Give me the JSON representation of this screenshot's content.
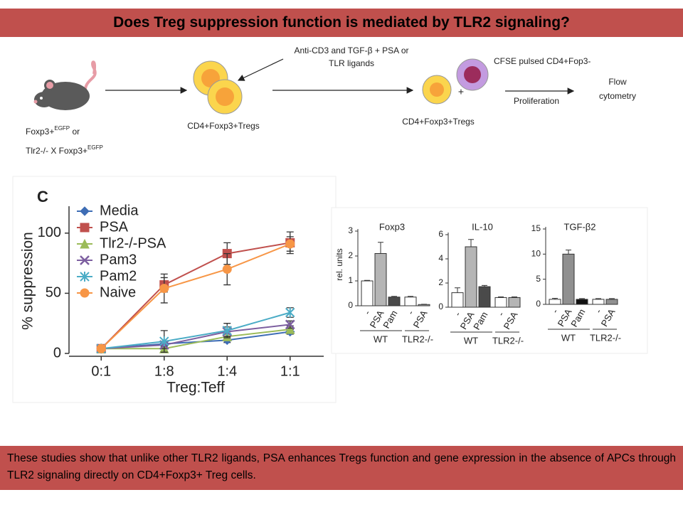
{
  "title": "Does Treg suppression function is mediated by TLR2 signaling?",
  "diagram": {
    "stimulus": [
      "Anti-CD3 and TGF-β + PSA or",
      "TLR ligands"
    ],
    "responder": "CFSE pulsed CD4+Fop3-",
    "readout": [
      "Flow",
      "cytometry"
    ],
    "proliferation": "Proliferation",
    "plus": "+",
    "cells": [
      "CD4+Foxp3+Tregs",
      "CD4+Foxp3+Tregs"
    ],
    "mouse": [
      [
        "Foxp3+",
        "EGFP",
        " or"
      ],
      [
        "Tlr2-/- X Foxp3+",
        "EGFP"
      ]
    ]
  },
  "chart_data": [
    {
      "type": "line",
      "panel": "C",
      "xlabel": "Treg:Teff",
      "ylabel": "% suppression",
      "categories": [
        "0:1",
        "1:8",
        "1:4",
        "1:1"
      ],
      "ylim": [
        0,
        120
      ],
      "yticks": [
        0,
        50,
        100
      ],
      "series": [
        {
          "name": "Media",
          "color": "#3e6db5",
          "marker": "diamond",
          "values": [
            4,
            8,
            11,
            18
          ],
          "errors": [
            1,
            2,
            2,
            2
          ]
        },
        {
          "name": "PSA",
          "color": "#c0504d",
          "marker": "square",
          "values": [
            4,
            57,
            83,
            92
          ],
          "errors": [
            1,
            6,
            9,
            9
          ]
        },
        {
          "name": "Tlr2-/-PSA",
          "color": "#9bbb59",
          "marker": "triangle",
          "values": [
            4,
            4,
            14,
            20
          ],
          "errors": [
            1,
            2,
            3,
            3
          ]
        },
        {
          "name": "Pam3",
          "color": "#7d5fa0",
          "marker": "x",
          "values": [
            4,
            7,
            18,
            24
          ],
          "errors": [
            1,
            3,
            4,
            3
          ]
        },
        {
          "name": "Pam2",
          "color": "#4bacc6",
          "marker": "star",
          "values": [
            4,
            10,
            19,
            34
          ],
          "errors": [
            1,
            9,
            6,
            4
          ]
        },
        {
          "name": "Naive",
          "color": "#f79646",
          "marker": "circle",
          "values": [
            4,
            54,
            70,
            91
          ],
          "errors": [
            1,
            12,
            13,
            6
          ]
        }
      ]
    },
    {
      "type": "bar",
      "title": "Foxp3",
      "ylabel": "rel. units",
      "categories": [
        "-",
        "PSA",
        "Pam",
        "-",
        "PSA"
      ],
      "groups": [
        "WT",
        "TLR2-/-"
      ],
      "values": [
        1,
        2.1,
        0.35,
        0.35,
        0.05
      ],
      "errors": [
        0.02,
        0.45,
        0.03,
        0.03,
        0.01
      ],
      "colors": [
        "#ffffff",
        "#b5b5b5",
        "#4a4a4a",
        "#ffffff",
        "#b5b5b5"
      ],
      "ylim": [
        0,
        3
      ],
      "yticks": [
        0,
        1,
        2,
        3
      ]
    },
    {
      "type": "bar",
      "title": "IL-10",
      "categories": [
        "-",
        "PSA",
        "Pam",
        "-",
        "PSA"
      ],
      "groups": [
        "WT",
        "TLR2-/-"
      ],
      "values": [
        1.2,
        5,
        1.7,
        0.8,
        0.8
      ],
      "errors": [
        0.4,
        0.6,
        0.1,
        0.05,
        0.05
      ],
      "colors": [
        "#ffffff",
        "#b5b5b5",
        "#4a4a4a",
        "#ffffff",
        "#b5b5b5"
      ],
      "ylim": [
        0,
        6
      ],
      "yticks": [
        0,
        2,
        4,
        6
      ]
    },
    {
      "type": "bar",
      "title": "TGF-β2",
      "categories": [
        "-",
        "PSA",
        "Pam",
        "-",
        "PSA"
      ],
      "groups": [
        "WT",
        "TLR2-/-"
      ],
      "values": [
        1,
        10,
        1,
        1,
        1
      ],
      "errors": [
        0.2,
        0.8,
        0.15,
        0.15,
        0.15
      ],
      "colors": [
        "#ffffff",
        "#909090",
        "#111111",
        "#ffffff",
        "#909090"
      ],
      "ylim": [
        0,
        15
      ],
      "yticks": [
        0,
        5,
        10,
        15
      ]
    }
  ],
  "footer": "These studies show that unlike other TLR2 ligands, PSA enhances Tregs function and gene expression in the absence of APCs through TLR2 signaling directly on CD4+Foxp3+ Treg cells."
}
